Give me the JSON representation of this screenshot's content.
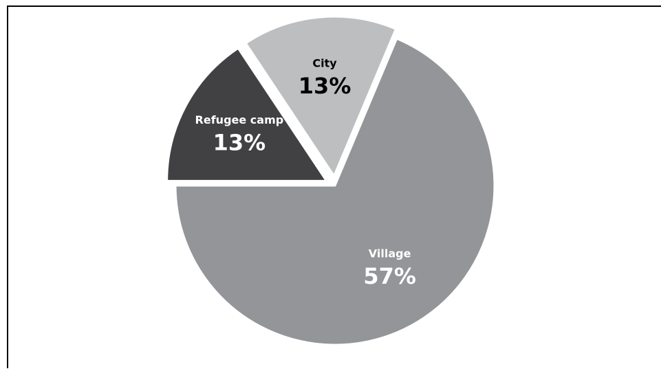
{
  "chart_data": {
    "type": "pie",
    "categories": [
      "Refugee camp",
      "City",
      "Village"
    ],
    "values": [
      13,
      13,
      57
    ],
    "value_labels": [
      "13%",
      "13%",
      "57%"
    ],
    "colors": [
      "#414042",
      "#bcbec0",
      "#939598"
    ]
  }
}
